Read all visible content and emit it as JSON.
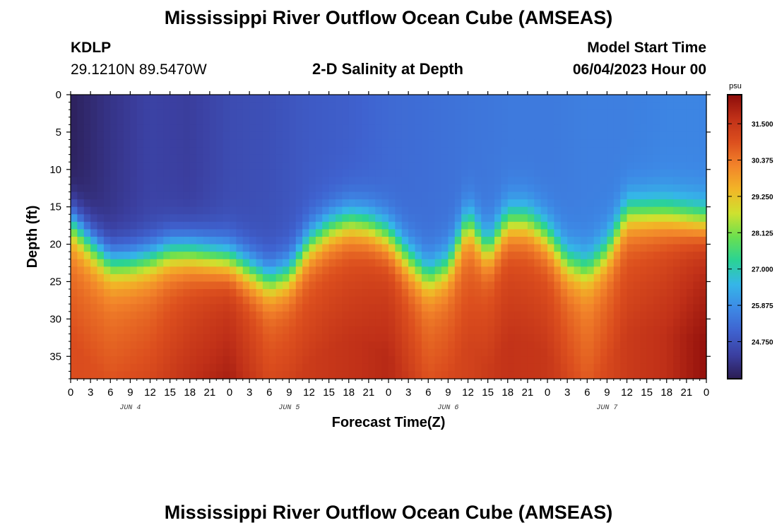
{
  "page": {
    "title_top": "Mississippi River Outflow Ocean Cube (AMSEAS)",
    "title_bottom": "Mississippi River Outflow Ocean Cube (AMSEAS)",
    "station_id": "KDLP",
    "station_coords": "29.1210N  89.5470W",
    "plot_title": "2-D Salinity at Depth",
    "model_start_label": "Model Start Time",
    "model_start_value": "06/04/2023 Hour 00"
  },
  "chart_data": {
    "type": "heatmap",
    "title": "2-D Salinity at Depth",
    "xlabel": "Forecast Time(Z)",
    "ylabel": "Depth (ft)",
    "x_hours": [
      0,
      96
    ],
    "x_tick_labels": [
      "0",
      "3",
      "6",
      "9",
      "12",
      "15",
      "18",
      "21",
      "0",
      "3",
      "6",
      "9",
      "12",
      "15",
      "18",
      "21",
      "0",
      "3",
      "6",
      "9",
      "12",
      "15",
      "18",
      "21",
      "0",
      "3",
      "6",
      "9",
      "12",
      "15",
      "18",
      "21",
      "0"
    ],
    "day_labels": [
      "JUN 4",
      "JUN 5",
      "JUN 6",
      "JUN 7"
    ],
    "y_range_ft": [
      0,
      38
    ],
    "y_ticks": [
      "0",
      "5",
      "10",
      "15",
      "20",
      "25",
      "30",
      "35"
    ],
    "y_inverted": true,
    "colorbar": {
      "unit": "psu",
      "range": [
        23.6,
        32.4
      ],
      "tick_labels": [
        "31.500",
        "30.375",
        "29.250",
        "28.125",
        "27.000",
        "25.875",
        "24.750"
      ],
      "colors": [
        "#2b1c52",
        "#3b3fa0",
        "#3f62cf",
        "#3d8ae6",
        "#35b6e8",
        "#2ad394",
        "#6be04f",
        "#cfe12f",
        "#f2b527",
        "#f2842a",
        "#dc4f1e",
        "#c03018",
        "#8c0c0a"
      ]
    },
    "halocline_depth_ft": {
      "hours": [
        0,
        3,
        6,
        9,
        12,
        15,
        18,
        21,
        24,
        27,
        30,
        33,
        36,
        39,
        42,
        45,
        48,
        51,
        54,
        57,
        60,
        63,
        66,
        69,
        72,
        75,
        78,
        81,
        84,
        87,
        90,
        93,
        96
      ],
      "depth": [
        17,
        20,
        22.5,
        22.5,
        22,
        21,
        21,
        21.5,
        22,
        23.5,
        25,
        24,
        20,
        18,
        17,
        17.5,
        19,
        22,
        24.5,
        23,
        17,
        21,
        17,
        17,
        19,
        22.5,
        23.5,
        21,
        16,
        16,
        16,
        16.5,
        17
      ]
    },
    "surface_salinity_psu": {
      "hours": [
        0,
        6,
        12,
        18,
        24,
        30,
        36,
        42,
        48,
        54,
        60,
        66,
        72,
        78,
        84,
        90,
        96
      ],
      "value": [
        23.7,
        24.1,
        24.4,
        24.3,
        24.6,
        24.7,
        24.9,
        25.0,
        25.2,
        25.3,
        25.4,
        25.5,
        25.5,
        25.6,
        25.6,
        25.7,
        25.7
      ]
    },
    "deep_salinity_psu": {
      "hours": [
        0,
        6,
        12,
        18,
        24,
        30,
        36,
        42,
        48,
        54,
        60,
        66,
        72,
        78,
        84,
        90,
        96
      ],
      "value": [
        30.4,
        30.3,
        30.5,
        31.0,
        31.4,
        30.6,
        30.8,
        31.0,
        31.2,
        30.4,
        30.6,
        31.0,
        30.9,
        30.2,
        30.8,
        31.1,
        31.7
      ]
    }
  }
}
